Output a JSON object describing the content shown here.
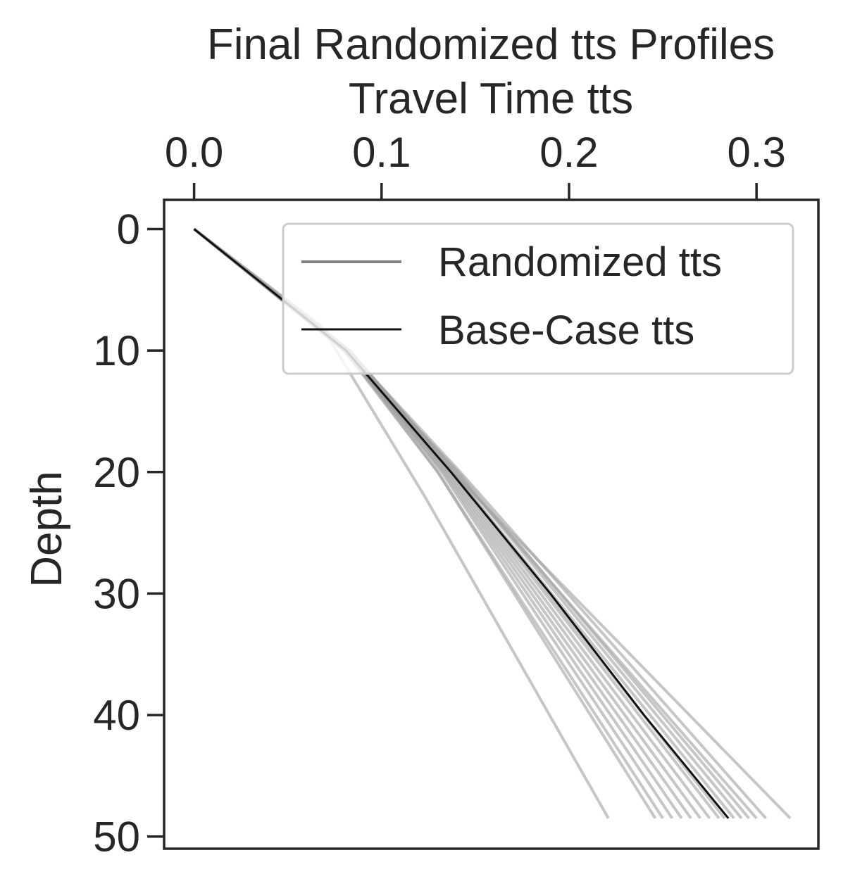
{
  "chart_data": {
    "type": "line",
    "title": "Final Randomized tts Profiles",
    "xlabel": "Travel Time tts",
    "ylabel": "Depth",
    "x_axis_position": "top",
    "y_inverted": true,
    "xlim": [
      -0.016,
      0.333
    ],
    "ylim": [
      51,
      -2.4
    ],
    "xticks": [
      0.0,
      0.1,
      0.2,
      0.3
    ],
    "xtick_labels": [
      "0.0",
      "0.1",
      "0.2",
      "0.3"
    ],
    "yticks": [
      0,
      10,
      20,
      30,
      40,
      50
    ],
    "ytick_labels": [
      "0",
      "10",
      "20",
      "30",
      "40",
      "50"
    ],
    "grid": false,
    "legend": {
      "placement": "upper-right",
      "entries": [
        {
          "label": "Randomized tts",
          "color": "#808080"
        },
        {
          "label": "Base-Case tts",
          "color": "#111111"
        }
      ]
    },
    "series": [
      {
        "name": "Base-Case tts",
        "color": "#111111",
        "depth": [
          0,
          10,
          20,
          30,
          40,
          48.5
        ],
        "tts": [
          0,
          0.081,
          0.137,
          0.19,
          0.24,
          0.285
        ]
      },
      {
        "name": "Randomized tts",
        "color": "#a0a0a0",
        "members": [
          {
            "depth": [
              0,
              8,
              22,
              48.5
            ],
            "tts": [
              0,
              0.068,
              0.123,
              0.221
            ]
          },
          {
            "depth": [
              0,
              10,
              20,
              48.5
            ],
            "tts": [
              0,
              0.081,
              0.13,
              0.246
            ]
          },
          {
            "depth": [
              0,
              10,
              20,
              48.5
            ],
            "tts": [
              0,
              0.08,
              0.13,
              0.25
            ]
          },
          {
            "depth": [
              0,
              10,
              20,
              48.5
            ],
            "tts": [
              0,
              0.082,
              0.132,
              0.255
            ]
          },
          {
            "depth": [
              0,
              10,
              20,
              48.5
            ],
            "tts": [
              0,
              0.08,
              0.133,
              0.26
            ]
          },
          {
            "depth": [
              0,
              10,
              20,
              48.5
            ],
            "tts": [
              0,
              0.081,
              0.134,
              0.265
            ]
          },
          {
            "depth": [
              0,
              10,
              20,
              48.5
            ],
            "tts": [
              0,
              0.082,
              0.135,
              0.27
            ]
          },
          {
            "depth": [
              0,
              10,
              20,
              48.5
            ],
            "tts": [
              0,
              0.08,
              0.136,
              0.275
            ]
          },
          {
            "depth": [
              0,
              10,
              20,
              48.5
            ],
            "tts": [
              0,
              0.081,
              0.137,
              0.28
            ]
          },
          {
            "depth": [
              0,
              10,
              20,
              48.5
            ],
            "tts": [
              0,
              0.083,
              0.138,
              0.283
            ]
          },
          {
            "depth": [
              0,
              10,
              20,
              48.5
            ],
            "tts": [
              0,
              0.081,
              0.138,
              0.288
            ]
          },
          {
            "depth": [
              0,
              10,
              20,
              48.5
            ],
            "tts": [
              0,
              0.082,
              0.14,
              0.292
            ]
          },
          {
            "depth": [
              0,
              10,
              20,
              48.5
            ],
            "tts": [
              0,
              0.08,
              0.141,
              0.296
            ]
          },
          {
            "depth": [
              0,
              10,
              18,
              48.5
            ],
            "tts": [
              0,
              0.083,
              0.128,
              0.3
            ]
          },
          {
            "depth": [
              0,
              10,
              20,
              48.5
            ],
            "tts": [
              0,
              0.082,
              0.142,
              0.305
            ]
          },
          {
            "depth": [
              0,
              9,
              18,
              48.5
            ],
            "tts": [
              0,
              0.075,
              0.125,
              0.318
            ]
          }
        ]
      }
    ]
  }
}
